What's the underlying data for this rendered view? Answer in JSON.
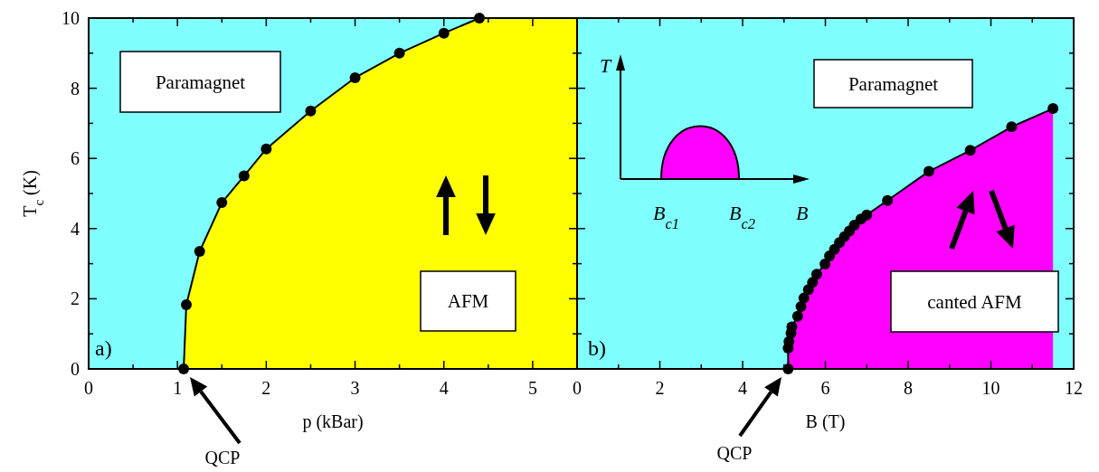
{
  "chart_data": [
    {
      "type": "area",
      "xlabel": "p (kBar)",
      "ylabel": "T$_{c}$ (K)",
      "xlim": [
        0,
        5.5
      ],
      "ylim": [
        0,
        10
      ],
      "xticks": [
        0,
        {
          "value": 0.5,
          "label": null
        },
        1,
        {
          "value": 1.5,
          "label": null
        },
        2,
        {
          "value": 2.5,
          "label": null
        },
        3,
        {
          "value": 3.5,
          "label": null
        },
        4,
        {
          "value": 4.5,
          "label": null
        },
        5
      ],
      "yticks": [
        0,
        {
          "value": 1,
          "label": null
        },
        2,
        {
          "value": 3,
          "label": null
        },
        4,
        {
          "value": 5,
          "label": null
        },
        6,
        {
          "value": 7,
          "label": null
        },
        8,
        {
          "value": 9,
          "label": null
        },
        10
      ],
      "x": [
        1.07,
        1.1,
        1.25,
        1.5,
        1.75,
        2,
        2.5,
        3,
        3.5,
        4,
        4.4
      ],
      "series": [
        {
          "color": "#ffff00",
          "values": [
            0,
            1.83,
            3.35,
            4.74,
            5.5,
            6.27,
            7.35,
            8.3,
            9.0,
            9.57,
            10
          ]
        }
      ],
      "marker": "circle",
      "grid": false,
      "bands": [
        {
          "axis": "x",
          "from": 0,
          "to": 5.5,
          "color": "#80ffff"
        },
        {
          "axis": "x",
          "from": 4.4,
          "to": 5.5,
          "color": "#ffff00"
        }
      ],
      "annotations": [
        "Paramagnet",
        "AFM",
        "a)",
        "QCP"
      ]
    },
    {
      "type": "area",
      "xlabel": "B (T)",
      "xlim": [
        0,
        12
      ],
      "ylim": [
        0,
        10
      ],
      "tick_labels": "x",
      "xticks": [
        0,
        {
          "value": 1,
          "label": null
        },
        2,
        {
          "value": 3,
          "label": null
        },
        4,
        {
          "value": 5,
          "label": null
        },
        6,
        {
          "value": 7,
          "label": null
        },
        8,
        {
          "value": 9,
          "label": null
        },
        10,
        {
          "value": 11,
          "label": null
        },
        12
      ],
      "yticks": [
        0,
        {
          "value": 1,
          "label": null
        },
        2,
        {
          "value": 3,
          "label": null
        },
        4,
        {
          "value": 5,
          "label": null
        },
        6,
        {
          "value": 7,
          "label": null
        },
        8,
        {
          "value": 9,
          "label": null
        },
        10
      ],
      "x": [
        5.1,
        5.1,
        5.12,
        5.17,
        5.19,
        5.33,
        5.41,
        5.48,
        5.59,
        5.69,
        5.79,
        5.99,
        6.1,
        6.22,
        6.34,
        6.46,
        6.58,
        6.7,
        6.86,
        7.0,
        7.5,
        8.5,
        9.5,
        10.5,
        11.5
      ],
      "series": [
        {
          "color": "#ff00ff",
          "values": [
            0,
            0.59,
            0.78,
            1.02,
            1.2,
            1.5,
            1.78,
            2.02,
            2.26,
            2.47,
            2.7,
            2.99,
            3.22,
            3.41,
            3.6,
            3.77,
            3.93,
            4.1,
            4.27,
            4.39,
            4.8,
            5.63,
            6.23,
            6.9,
            7.42
          ]
        }
      ],
      "marker": "circle",
      "grid": false,
      "bands": [
        {
          "axis": "x",
          "from": 0,
          "to": 12,
          "color": "#80ffff"
        }
      ],
      "annotations": [
        "Paramagnet",
        "canted AFM",
        "b)",
        "QCP",
        "T",
        "B$_{c1}$",
        "B$_{c2}$",
        "B"
      ]
    }
  ]
}
